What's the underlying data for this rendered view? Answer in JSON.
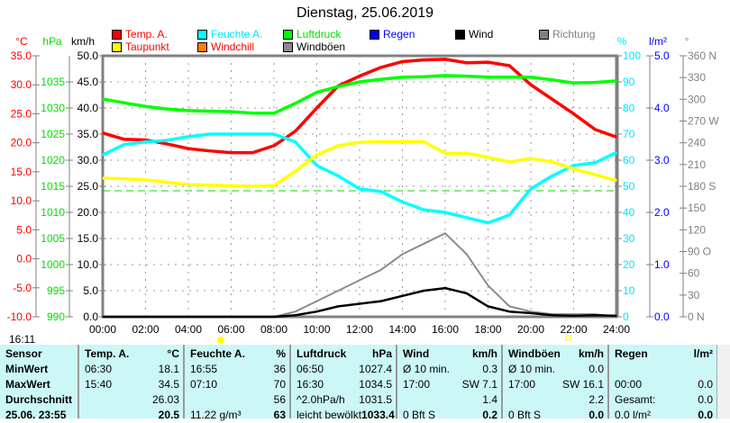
{
  "chart_data": {
    "type": "line",
    "title": "Dienstag, 25.06.2019",
    "x_ticks": [
      "00:00",
      "02:00",
      "04:00",
      "06:00",
      "08:00",
      "10:00",
      "12:00",
      "14:00",
      "16:00",
      "18:00",
      "20:00",
      "22:00",
      "24:00"
    ],
    "hours": [
      0,
      1,
      2,
      3,
      4,
      5,
      6,
      7,
      8,
      9,
      10,
      11,
      12,
      13,
      14,
      15,
      16,
      17,
      18,
      19,
      20,
      21,
      22,
      23,
      24
    ],
    "axes": {
      "temp": {
        "unit": "°C",
        "range": [
          -10,
          35
        ],
        "ticks": [
          "35.0",
          "30.0",
          "25.0",
          "20.0",
          "15.0",
          "10.0",
          "5.0",
          "0.0",
          "-5.0",
          "-10.0"
        ]
      },
      "pressure": {
        "unit": "hPa",
        "range": [
          990,
          1040
        ],
        "ticks": [
          "1035",
          "1030",
          "1025",
          "1020",
          "1015",
          "1010",
          "1005",
          "1000",
          "995",
          "990"
        ]
      },
      "wind": {
        "unit": "km/h",
        "range": [
          0,
          50
        ],
        "ticks": [
          "50.0",
          "45.0",
          "40.0",
          "35.0",
          "30.0",
          "25.0",
          "20.0",
          "15.0",
          "10.0",
          "5.0",
          "0.0"
        ]
      },
      "humidity": {
        "unit": "%",
        "range": [
          0,
          100
        ],
        "ticks": [
          "100",
          "90",
          "80",
          "70",
          "60",
          "50",
          "40",
          "30",
          "20",
          "10",
          "0"
        ]
      },
      "rain": {
        "unit": "l/m²",
        "range": [
          0,
          5
        ],
        "ticks": [
          "5.0",
          "4.0",
          "3.0",
          "2.0",
          "1.0",
          "0.0"
        ]
      },
      "direction": {
        "unit": "°",
        "range": [
          0,
          360
        ],
        "ticks": [
          "360 N",
          "330",
          "300",
          "270 W",
          "240",
          "210",
          "180 S",
          "150",
          "120",
          "90  O",
          "60",
          "30",
          "0   N"
        ]
      }
    },
    "legend": [
      {
        "name": "Temp. A.",
        "color": "#ff0000",
        "text_color": "#ff0000"
      },
      {
        "name": "Feuchte A.",
        "color": "#00ffff",
        "text_color": "#00e5ff"
      },
      {
        "name": "Luftdruck",
        "color": "#00ff00",
        "text_color": "#00e000"
      },
      {
        "name": "Regen",
        "color": "#0000ff",
        "text_color": "#0000ff"
      },
      {
        "name": "Wind",
        "color": "#000000",
        "text_color": "#000000"
      },
      {
        "name": "Richtung",
        "color": "#808080",
        "text_color": "#808080"
      },
      {
        "name": "Taupunkt",
        "color": "#ffff00",
        "text_color": "#ff0000"
      },
      {
        "name": "Windchill",
        "color": "#ff8000",
        "text_color": "#ff0000"
      },
      {
        "name": "Windböen",
        "color": "#908890",
        "text_color": "#000000"
      }
    ],
    "series": [
      {
        "name": "Temp. A.",
        "axis": "temp",
        "color": "#ff0000",
        "values": [
          21.7,
          20.6,
          20.5,
          19.8,
          19.0,
          18.6,
          18.3,
          18.3,
          19.5,
          22,
          26,
          29.8,
          31.5,
          33,
          34,
          34.3,
          34.4,
          33.8,
          33.9,
          33.3,
          30,
          27.5,
          25,
          22.3,
          21
        ]
      },
      {
        "name": "Feuchte A.",
        "axis": "humidity",
        "color": "#00ffff",
        "values": [
          62,
          66,
          67,
          67.6,
          69,
          70,
          70,
          70,
          70,
          67,
          58,
          54,
          49,
          48,
          44,
          41,
          40,
          38,
          36,
          39,
          49,
          54,
          58,
          59,
          63
        ]
      },
      {
        "name": "Luftdruck",
        "axis": "pressure",
        "color": "#00ff00",
        "values": [
          1031.7,
          1031,
          1030.3,
          1029.8,
          1029.5,
          1029.4,
          1029.3,
          1029,
          1029,
          1030.9,
          1033,
          1034.1,
          1035,
          1035.5,
          1035.9,
          1036,
          1036.2,
          1036.1,
          1035.9,
          1035.9,
          1035.9,
          1035.4,
          1034.8,
          1034.9,
          1035.2
        ]
      },
      {
        "name": "Taupunkt",
        "axis": "temp",
        "color": "#ffff00",
        "values": [
          13.9,
          13.8,
          13.6,
          13.2,
          12.8,
          12.7,
          12.6,
          12.5,
          12.6,
          15.1,
          17.9,
          19.5,
          20.1,
          20.2,
          20.2,
          20.2,
          18.2,
          18.2,
          17.5,
          16.7,
          17.3,
          16.7,
          15.5,
          14.5,
          13.5
        ]
      },
      {
        "name": "Windböen",
        "axis": "wind",
        "color": "#908890",
        "values": [
          0,
          0,
          0,
          0,
          0,
          0,
          0,
          0,
          0,
          1,
          3,
          5,
          7,
          9,
          12,
          14,
          16,
          12,
          6,
          2,
          1,
          0.5,
          0.5,
          0.5,
          0
        ]
      },
      {
        "name": "Wind",
        "axis": "wind",
        "color": "#000000",
        "values": [
          0,
          0,
          0,
          0,
          0,
          0,
          0,
          0,
          0,
          0.3,
          1,
          2,
          2.5,
          3,
          4,
          5,
          5.5,
          4.5,
          2,
          1,
          0.7,
          0.3,
          0.2,
          0.3,
          0.2
        ]
      }
    ]
  },
  "time": "16:11",
  "table": {
    "cols": [
      {
        "h": [
          "Sensor",
          ""
        ],
        "rows": [
          [
            "MinWert",
            ""
          ],
          [
            "MaxWert",
            ""
          ],
          [
            "Durchschnitt",
            ""
          ],
          [
            "25.06. 23:55",
            ""
          ]
        ]
      },
      {
        "h": [
          "Temp. A.",
          "°C"
        ],
        "rows": [
          [
            "06:30",
            "18.1"
          ],
          [
            "15:40",
            "34.5"
          ],
          [
            "",
            "26.03"
          ],
          [
            "",
            "20.5"
          ]
        ]
      },
      {
        "h": [
          "Feuchte A.",
          "%"
        ],
        "rows": [
          [
            "16:55",
            "36"
          ],
          [
            "07:10",
            "70"
          ],
          [
            "",
            "56"
          ],
          [
            "11.22 g/m³",
            "63"
          ]
        ]
      },
      {
        "h": [
          "Luftdruck",
          "hPa"
        ],
        "rows": [
          [
            "06:50",
            "1027.4"
          ],
          [
            "16:30",
            "1034.5"
          ],
          [
            "^2.0hPa/h",
            "1031.5"
          ],
          [
            "leicht bewölkt",
            "1033.4"
          ]
        ]
      },
      {
        "h": [
          "Wind",
          "km/h"
        ],
        "rows": [
          [
            "Ø 10 min.",
            "0.3"
          ],
          [
            "17:00",
            "SW 7.1"
          ],
          [
            "",
            "1.4"
          ],
          [
            "0 Bft S",
            "0.2"
          ]
        ]
      },
      {
        "h": [
          "Windböen",
          "km/h"
        ],
        "rows": [
          [
            "Ø 10 min.",
            "0.0"
          ],
          [
            "17:00",
            "SW 16.1"
          ],
          [
            "",
            "2.2"
          ],
          [
            "0 Bft S",
            "0.0"
          ]
        ]
      },
      {
        "h": [
          "Regen",
          "l/m²"
        ],
        "rows": [
          [
            "",
            ""
          ],
          [
            "00:00",
            "0.0"
          ],
          [
            "Gesamt:",
            "0.0"
          ],
          [
            "0.0 l/m²",
            "0.0"
          ]
        ]
      }
    ]
  }
}
